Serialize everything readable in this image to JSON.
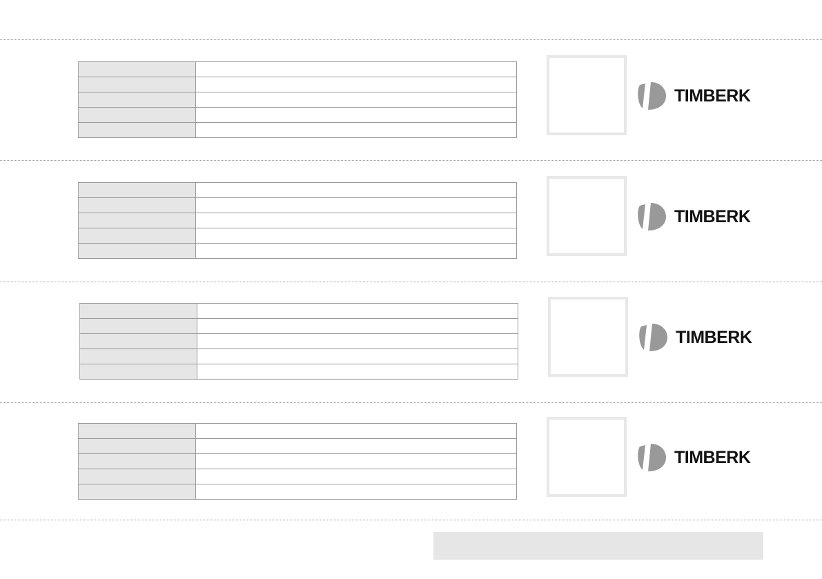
{
  "brand": {
    "logo_text": "TIMBERK",
    "logo_color": "#999999",
    "text_color": "#111111"
  },
  "cards": [
    {
      "rows": [
        "",
        "",
        "",
        "",
        ""
      ]
    },
    {
      "rows": [
        "",
        "",
        "",
        "",
        ""
      ]
    },
    {
      "rows": [
        "",
        "",
        "",
        "",
        ""
      ]
    },
    {
      "rows": [
        "",
        "",
        "",
        "",
        ""
      ]
    }
  ],
  "colors": {
    "label_cell": "#e6e6e6",
    "border": "#999999",
    "footer_bar": "#e6e6e6"
  }
}
